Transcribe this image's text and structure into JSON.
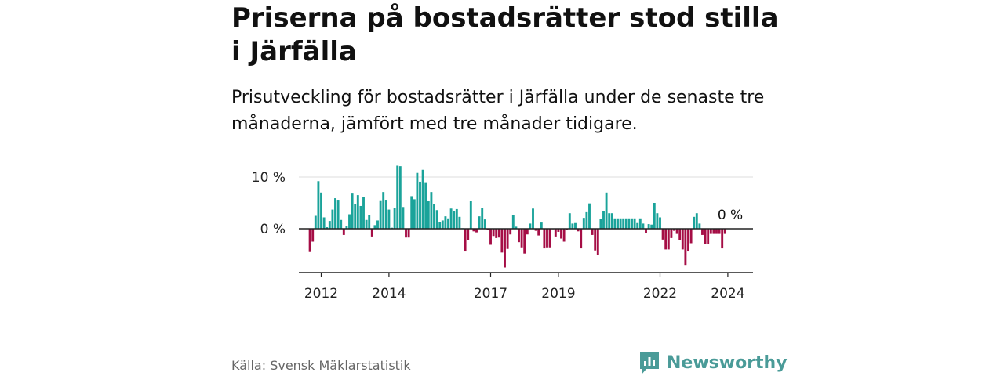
{
  "title": "Priserna på bostadsrätter stod stilla i Järfälla",
  "subtitle": "Prisutveckling för bostadsrätter i Järfälla under de senaste tre månaderna, jämfört med tre månader tidigare.",
  "source": "Källa: Svensk Mäklarstatistik",
  "brand": "Newsworthy",
  "colors": {
    "positive": "#1aa39a",
    "negative": "#a50d45",
    "brand": "#4a9b98",
    "grid": "#dddddd",
    "axis": "#222222"
  },
  "chart_data": {
    "type": "bar",
    "ylabel": "",
    "xlabel": "",
    "ylim": [
      -8,
      12
    ],
    "yticks": [
      {
        "value": 0,
        "label": "0 %"
      },
      {
        "value": 10,
        "label": "10 %"
      }
    ],
    "xticks": [
      {
        "value": 2012,
        "label": "2012"
      },
      {
        "value": 2014,
        "label": "2014"
      },
      {
        "value": 2017,
        "label": "2017"
      },
      {
        "value": 2019,
        "label": "2019"
      },
      {
        "value": 2022,
        "label": "2022"
      },
      {
        "value": 2024,
        "label": "2024"
      }
    ],
    "x_start": 2011.667,
    "x_end": 2024.417,
    "step": 0.08333,
    "last_label": "0 %",
    "values": [
      -4.5,
      -2.5,
      2.5,
      9.2,
      7,
      2.2,
      0.3,
      1.5,
      3.7,
      5.9,
      5.6,
      1.7,
      -1.2,
      0.5,
      2.8,
      6.8,
      4.8,
      6.5,
      4.4,
      6.1,
      1.7,
      2.7,
      -1.5,
      0.7,
      1.6,
      5.5,
      7.1,
      5.6,
      3.7,
      0.2,
      4,
      12.2,
      12.1,
      4.2,
      -1.7,
      -1.7,
      6.3,
      5.7,
      10.8,
      9.1,
      11.4,
      9,
      5.3,
      7.1,
      4.7,
      3.6,
      1.3,
      1.6,
      2.4,
      2,
      3.9,
      3.4,
      3.8,
      2.3,
      0.1,
      -4.4,
      -2.2,
      5.4,
      -0.5,
      -0.7,
      2.4,
      4,
      1.8,
      -0.3,
      -3.1,
      -1.4,
      -1.8,
      -1.7,
      -4.6,
      -7.5,
      -3.9,
      -1.1,
      2.7,
      0.4,
      -2.6,
      -3.6,
      -4.8,
      -1.1,
      1,
      3.9,
      -0.4,
      -1.3,
      1.2,
      -3.8,
      -3.6,
      -3.6,
      -0.1,
      -1.5,
      -0.6,
      -1.9,
      -2.5,
      -0.2,
      3,
      1,
      1.1,
      -0.5,
      -3.8,
      2.1,
      3.2,
      4.9,
      -1.2,
      -4.2,
      -5,
      1.9,
      3.4,
      7,
      3,
      3,
      2,
      2,
      2,
      2,
      2,
      2,
      2,
      2,
      1.1,
      2,
      1,
      -0.9,
      0.9,
      0.8,
      5,
      3,
      2.2,
      -2.1,
      -4,
      -4,
      -1.8,
      -0.4,
      -1,
      -2.2,
      -4,
      -7,
      -4.4,
      -2.8,
      2.3,
      3,
      1,
      -1.2,
      -2.9,
      -3,
      -1,
      -1,
      -1,
      -1,
      -3.8,
      -1,
      0
    ]
  }
}
